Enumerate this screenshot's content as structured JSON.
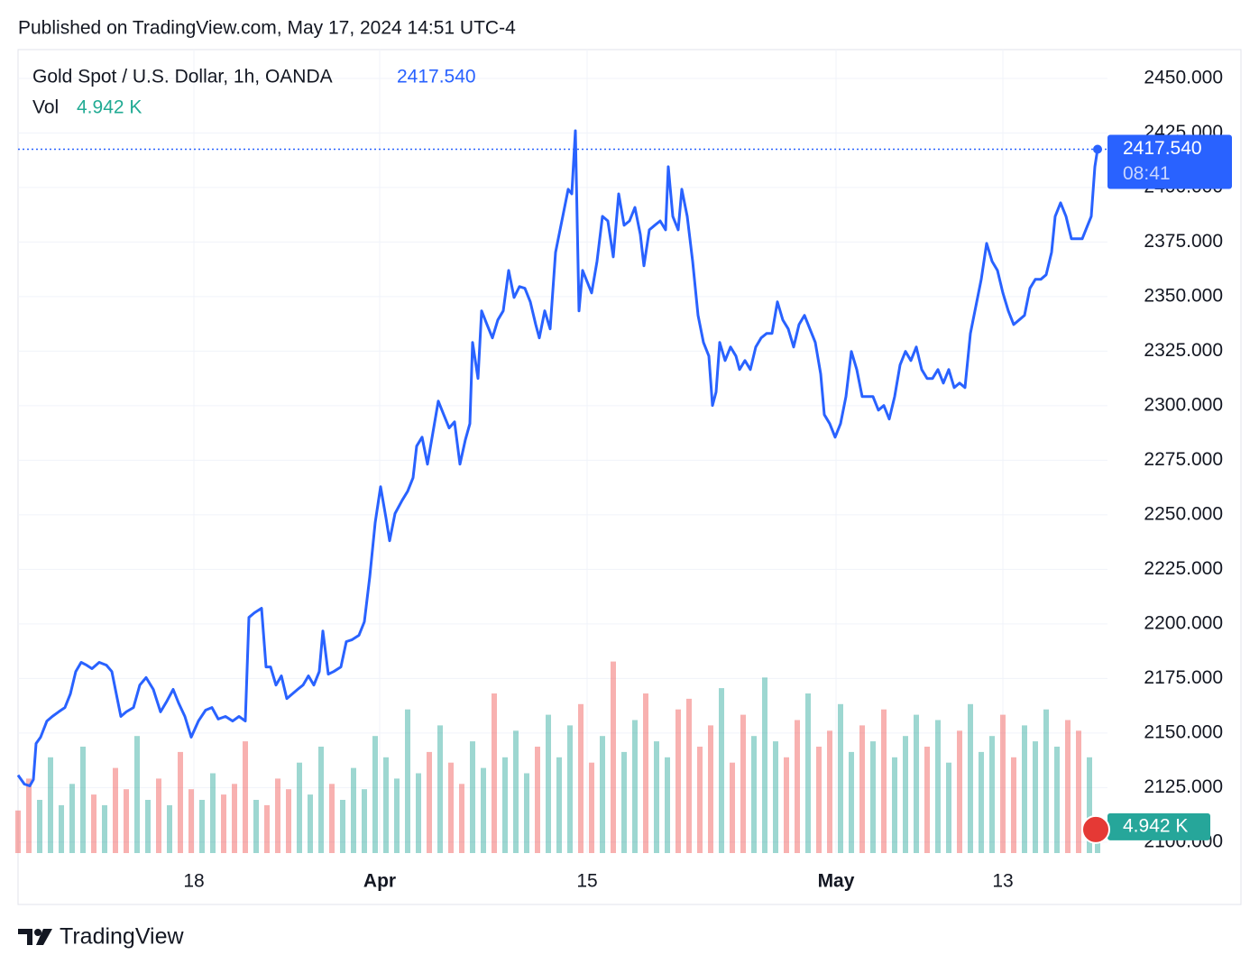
{
  "header": {
    "published": "Published on TradingView.com, May 17, 2024 14:51 UTC-4"
  },
  "chart_data": {
    "type": "line",
    "title": "Gold Spot / U.S. Dollar, 1h, OANDA",
    "last_price": {
      "value": 2417.54,
      "label": "2417.540"
    },
    "countdown": "08:41",
    "volume_label": "Vol",
    "last_volume": {
      "value": 4.942,
      "label": "4.942 K"
    },
    "x": [
      0,
      7,
      13,
      17,
      20,
      25,
      32,
      38,
      45,
      52,
      58,
      64,
      70,
      76,
      82,
      90,
      98,
      104,
      110,
      114,
      120,
      128,
      135,
      142,
      150,
      158,
      165,
      172,
      178,
      185,
      192,
      200,
      208,
      215,
      222,
      230,
      238,
      245,
      252,
      256,
      262,
      270,
      275,
      280,
      286,
      292,
      298,
      304,
      310,
      316,
      322,
      328,
      334,
      338,
      344,
      350,
      358,
      364,
      370,
      378,
      384,
      390,
      396,
      402,
      408,
      412,
      418,
      426,
      432,
      438,
      442,
      448,
      454,
      460,
      466,
      472,
      478,
      484,
      490,
      496,
      501,
      504,
      510,
      514,
      520,
      526,
      532,
      538,
      544,
      550,
      556,
      562,
      568,
      574,
      578,
      584,
      590,
      596,
      604,
      610,
      614,
      618,
      622,
      626,
      630,
      636,
      642,
      648,
      654,
      660,
      666,
      672,
      678,
      684,
      690,
      694,
      700,
      706,
      712,
      718,
      721,
      726,
      732,
      736,
      742,
      748,
      754,
      760,
      766,
      770,
      774,
      778,
      784,
      790,
      796,
      800,
      806,
      812,
      818,
      824,
      830,
      836,
      842,
      848,
      854,
      860,
      866,
      872,
      878,
      884,
      890,
      894,
      900,
      906,
      912,
      918,
      924,
      930,
      936,
      942,
      948,
      954,
      960,
      966,
      972,
      978,
      984,
      990,
      996,
      1002,
      1008,
      1014,
      1020,
      1026,
      1032,
      1038,
      1044,
      1050,
      1056,
      1062,
      1068,
      1074,
      1080,
      1086,
      1092,
      1098,
      1104,
      1110,
      1116,
      1122,
      1128,
      1134,
      1140,
      1146,
      1150,
      1156,
      1162,
      1168,
      1174,
      1180,
      1186,
      1190,
      1194,
      1197
    ],
    "series": [
      {
        "color": "#2962ff",
        "values": [
          2130.7,
          2126.6,
          2125.8,
          2128.7,
          2145.2,
          2148.1,
          2155.5,
          2157.6,
          2159.7,
          2161.7,
          2167.9,
          2178.2,
          2182.4,
          2181.1,
          2179.5,
          2182.4,
          2181.1,
          2178.2,
          2165.8,
          2157.6,
          2159.7,
          2161.7,
          2172.0,
          2175.4,
          2170.0,
          2159.7,
          2164.6,
          2170.0,
          2163.8,
          2157.6,
          2148.1,
          2155.5,
          2160.5,
          2161.7,
          2156.4,
          2157.6,
          2155.5,
          2157.6,
          2155.5,
          2203.0,
          2205.1,
          2207.2,
          2180.3,
          2180.3,
          2172.0,
          2176.2,
          2165.8,
          2167.9,
          2170.0,
          2172.0,
          2176.2,
          2172.0,
          2178.2,
          2196.8,
          2177.0,
          2178.2,
          2180.3,
          2191.9,
          2192.7,
          2194.8,
          2201.0,
          2221.6,
          2246.4,
          2262.9,
          2248.5,
          2238.1,
          2250.6,
          2256.7,
          2260.8,
          2267.0,
          2281.5,
          2285.6,
          2273.2,
          2287.7,
          2302.1,
          2295.9,
          2289.8,
          2292.6,
          2273.2,
          2284.4,
          2291.8,
          2329.0,
          2312.5,
          2343.5,
          2337.2,
          2331.1,
          2339.3,
          2343.5,
          2362.0,
          2349.6,
          2354.6,
          2353.8,
          2347.6,
          2337.2,
          2331.1,
          2343.5,
          2335.2,
          2370.3,
          2386.8,
          2399.2,
          2397.1,
          2426.0,
          2343.5,
          2362.0,
          2357.9,
          2351.7,
          2366.2,
          2386.8,
          2384.7,
          2368.2,
          2397.1,
          2382.7,
          2384.7,
          2390.9,
          2378.5,
          2364.1,
          2380.6,
          2382.7,
          2384.7,
          2380.6,
          2409.5,
          2386.8,
          2380.6,
          2399.2,
          2386.8,
          2366.2,
          2341.4,
          2329.0,
          2322.8,
          2300.1,
          2306.3,
          2329.0,
          2320.7,
          2326.9,
          2322.8,
          2316.6,
          2320.7,
          2316.6,
          2326.9,
          2331.1,
          2333.1,
          2333.1,
          2347.6,
          2339.3,
          2335.2,
          2326.9,
          2337.2,
          2341.4,
          2335.2,
          2329.0,
          2314.5,
          2295.9,
          2291.8,
          2285.6,
          2291.8,
          2304.2,
          2324.9,
          2316.6,
          2304.2,
          2304.2,
          2304.2,
          2298.0,
          2300.1,
          2293.9,
          2304.2,
          2318.7,
          2324.9,
          2320.7,
          2326.9,
          2316.6,
          2312.5,
          2312.5,
          2316.6,
          2310.4,
          2316.6,
          2308.3,
          2310.4,
          2308.3,
          2333.1,
          2345.5,
          2357.9,
          2374.4,
          2366.2,
          2362.0,
          2351.7,
          2343.5,
          2337.2,
          2339.3,
          2341.4,
          2353.8,
          2357.9,
          2357.9,
          2360.0,
          2370.3,
          2386.8,
          2393.0,
          2386.8,
          2376.5,
          2376.5,
          2376.5,
          2382.7,
          2386.8,
          2409.5,
          2417.54
        ]
      }
    ],
    "volume": {
      "x": [
        0,
        12,
        24,
        36,
        48,
        60,
        72,
        84,
        96,
        108,
        120,
        132,
        144,
        156,
        168,
        180,
        192,
        204,
        216,
        228,
        240,
        252,
        264,
        276,
        288,
        300,
        312,
        324,
        336,
        348,
        360,
        372,
        384,
        396,
        408,
        420,
        432,
        444,
        456,
        468,
        480,
        492,
        504,
        516,
        528,
        540,
        552,
        564,
        576,
        588,
        600,
        612,
        624,
        636,
        648,
        660,
        672,
        684,
        696,
        708,
        720,
        732,
        744,
        756,
        768,
        780,
        792,
        804,
        816,
        828,
        840,
        852,
        864,
        876,
        888,
        900,
        912,
        924,
        936,
        948,
        960,
        972,
        984,
        996,
        1008,
        1020,
        1032,
        1044,
        1056,
        1068,
        1080,
        1092,
        1104,
        1116,
        1128,
        1140,
        1152,
        1164,
        1176,
        1188,
        1197
      ],
      "values": [
        8,
        14,
        10,
        18,
        9,
        13,
        20,
        11,
        9,
        16,
        12,
        22,
        10,
        14,
        9,
        19,
        12,
        10,
        15,
        11,
        13,
        21,
        10,
        9,
        14,
        12,
        17,
        11,
        20,
        13,
        10,
        16,
        12,
        22,
        18,
        14,
        27,
        15,
        19,
        24,
        17,
        13,
        21,
        16,
        30,
        18,
        23,
        15,
        20,
        26,
        18,
        24,
        28,
        17,
        22,
        36,
        19,
        25,
        30,
        21,
        18,
        27,
        29,
        20,
        24,
        31,
        17,
        26,
        22,
        33,
        21,
        18,
        25,
        30,
        20,
        23,
        28,
        19,
        24,
        21,
        27,
        18,
        22,
        26,
        20,
        25,
        17,
        23,
        28,
        19,
        22,
        26,
        18,
        24,
        21,
        27,
        20,
        25,
        23,
        18,
        4.942
      ],
      "up_color": "#26a69a",
      "down_color": "#ef5350"
    },
    "ylim": [
      2095,
      2463.2
    ],
    "yticks": [
      {
        "value": 2100,
        "label": "2100.000"
      },
      {
        "value": 2125,
        "label": "2125.000"
      },
      {
        "value": 2150,
        "label": "2150.000"
      },
      {
        "value": 2175,
        "label": "2175.000"
      },
      {
        "value": 2200,
        "label": "2200.000"
      },
      {
        "value": 2225,
        "label": "2225.000"
      },
      {
        "value": 2250,
        "label": "2250.000"
      },
      {
        "value": 2275,
        "label": "2275.000"
      },
      {
        "value": 2300,
        "label": "2300.000"
      },
      {
        "value": 2325,
        "label": "2325.000"
      },
      {
        "value": 2350,
        "label": "2350.000"
      },
      {
        "value": 2375,
        "label": "2375.000"
      },
      {
        "value": 2400,
        "label": "2400.000"
      },
      {
        "value": 2425,
        "label": "2425.000"
      },
      {
        "value": 2450,
        "label": "2450.000"
      }
    ],
    "xlim": [
      0,
      1208
    ],
    "xticks": [
      {
        "value": 195,
        "label": "18"
      },
      {
        "value": 401,
        "label": "Apr"
      },
      {
        "value": 631,
        "label": "15"
      },
      {
        "value": 907,
        "label": "May"
      },
      {
        "value": 1092,
        "label": "13"
      }
    ],
    "vlim": [
      0,
      40
    ],
    "grid": true
  },
  "footer": {
    "brand": "TradingView"
  }
}
